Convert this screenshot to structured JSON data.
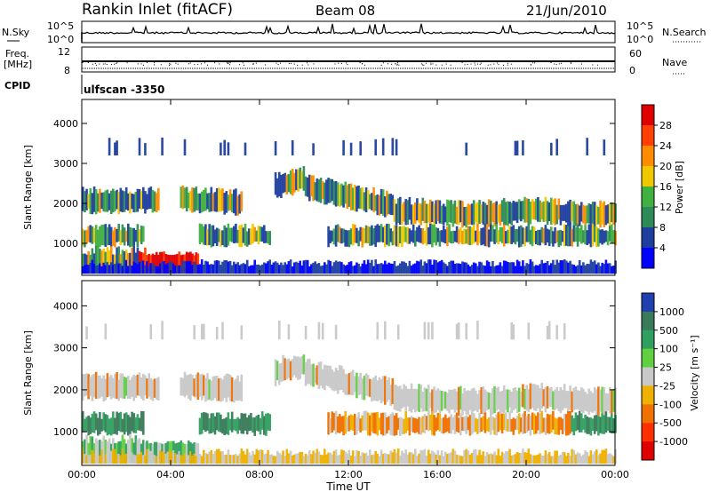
{
  "header": {
    "station": "Rankin Inlet (fitACF)",
    "beam": "Beam 08",
    "date": "21/Jun/2010"
  },
  "nsky_panel": {
    "left_label": "N.Sky",
    "right_label": "N.Search",
    "left_ticks": [
      "10^5",
      "10^0"
    ],
    "right_ticks": [
      "10^5",
      "10^0"
    ]
  },
  "freq_panel": {
    "left_label_1": "Freq.",
    "left_label_2": "[MHz]",
    "right_label": "Nave",
    "left_ticks": [
      "12",
      "8"
    ],
    "right_ticks": [
      "60",
      "0"
    ],
    "cpid_label": "CPID",
    "cpid_value": "ulfscan -3350"
  },
  "chart_data": [
    {
      "type": "heatmap",
      "name": "power",
      "ylabel": "Slant Range [km]",
      "yticks": [
        1000,
        2000,
        3000,
        4000
      ],
      "ylim": [
        200,
        4600
      ],
      "colorbar_label": "Power [dB]",
      "colorbar_ticks": [
        "28",
        "24",
        "20",
        "16",
        "12",
        "8",
        "4"
      ],
      "colorbar_colors": [
        "#e00000",
        "#ff4000",
        "#ff8c00",
        "#f0c800",
        "#40b040",
        "#2e8b57",
        "#1f3fa0",
        "#0000ff"
      ]
    },
    {
      "type": "heatmap",
      "name": "velocity",
      "ylabel": "Slant Range [km]",
      "yticks": [
        1000,
        2000,
        3000,
        4000
      ],
      "ylim": [
        200,
        4600
      ],
      "colorbar_label": "Velocity [m s⁻¹]",
      "colorbar_ticks": [
        "1000",
        "500",
        "100",
        "25",
        "-25",
        "-100",
        "-500",
        "-1000"
      ],
      "colorbar_colors": [
        "#2040b0",
        "#3a7a5a",
        "#30a060",
        "#60d040",
        "#c8c8c8",
        "#f0b000",
        "#f07000",
        "#ff3000",
        "#e00000"
      ]
    }
  ],
  "xaxis": {
    "label": "Time UT",
    "ticks": [
      "00:00",
      "04:00",
      "08:00",
      "12:00",
      "16:00",
      "20:00",
      "00:00"
    ],
    "range_hours": [
      0,
      24
    ]
  },
  "colors": {
    "power_low": "#1f3fa0",
    "power_mid": "#40b040",
    "power_high": "#ff4000",
    "velocity_neutral": "#c8c8c8",
    "velocity_away": "#f07000",
    "velocity_toward": "#30a060"
  }
}
